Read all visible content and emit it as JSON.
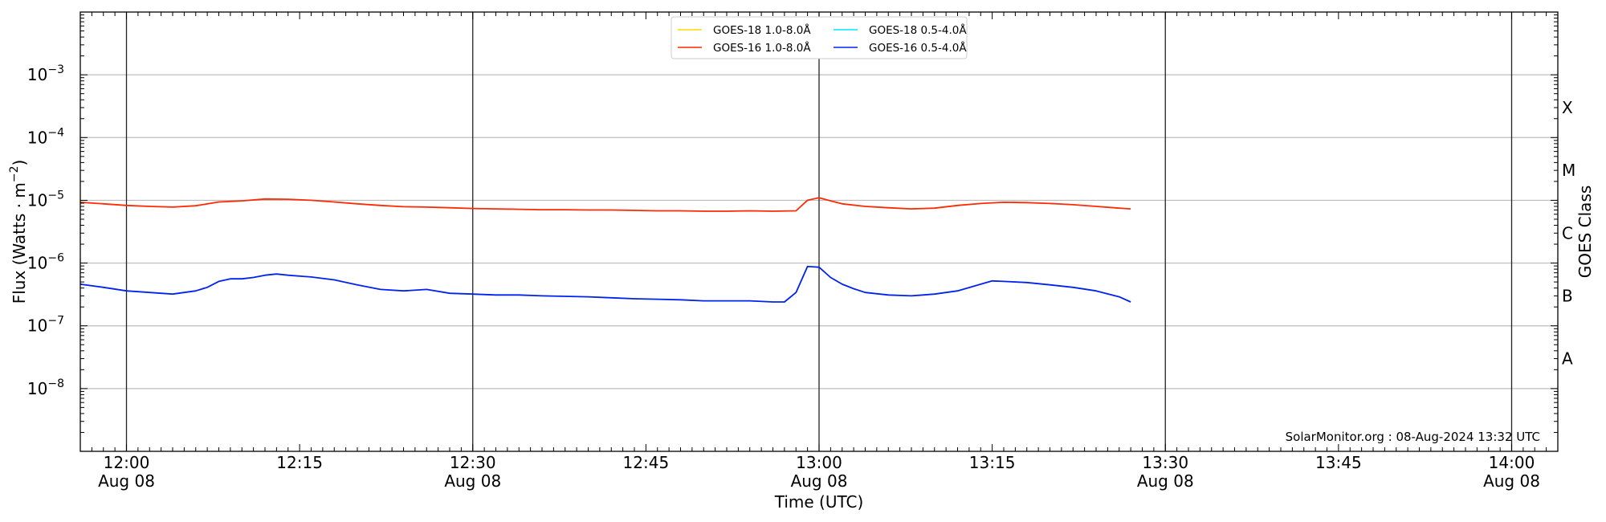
{
  "chart_data": {
    "type": "line",
    "title": "",
    "xlabel": "Time (UTC)",
    "ylabel": "Flux (Watts · m",
    "ylabel_sup": "−2",
    "ylabel_close": ")",
    "y2label": "GOES Class",
    "yscale": "log",
    "ylim": [
      1e-09,
      0.01
    ],
    "xlim": [
      "11:56",
      "14:04"
    ],
    "y_ticks": [
      {
        "exp": -8,
        "base": "10",
        "sup": "−8"
      },
      {
        "exp": -7,
        "base": "10",
        "sup": "−7"
      },
      {
        "exp": -6,
        "base": "10",
        "sup": "−6"
      },
      {
        "exp": -5,
        "base": "10",
        "sup": "−5"
      },
      {
        "exp": -4,
        "base": "10",
        "sup": "−4"
      },
      {
        "exp": -3,
        "base": "10",
        "sup": "−3"
      }
    ],
    "x_ticks": [
      {
        "t": "12:00",
        "label": "12:00",
        "date": "Aug 08",
        "vline": true
      },
      {
        "t": "12:15",
        "label": "12:15",
        "date": "",
        "vline": false
      },
      {
        "t": "12:30",
        "label": "12:30",
        "date": "Aug 08",
        "vline": true
      },
      {
        "t": "12:45",
        "label": "12:45",
        "date": "",
        "vline": false
      },
      {
        "t": "13:00",
        "label": "13:00",
        "date": "Aug 08",
        "vline": true
      },
      {
        "t": "13:15",
        "label": "13:15",
        "date": "",
        "vline": false
      },
      {
        "t": "13:30",
        "label": "13:30",
        "date": "Aug 08",
        "vline": true
      },
      {
        "t": "13:45",
        "label": "13:45",
        "date": "",
        "vline": false
      },
      {
        "t": "14:00",
        "label": "14:00",
        "date": "Aug 08",
        "vline": true
      }
    ],
    "goes_classes": [
      {
        "label": "A",
        "level": 3e-08
      },
      {
        "label": "B",
        "level": 3e-07
      },
      {
        "label": "C",
        "level": 3e-06
      },
      {
        "label": "M",
        "level": 3e-05
      },
      {
        "label": "X",
        "level": 0.0003
      }
    ],
    "grid": true,
    "legend_position": "top-center",
    "legend": [
      {
        "name": "GOES-18 1.0-8.0Å",
        "color": "#ffd700"
      },
      {
        "name": "GOES-16 1.0-8.0Å",
        "color": "#ff2a00"
      },
      {
        "name": "GOES-18 0.5-4.0Å",
        "color": "#00e5ff"
      },
      {
        "name": "GOES-16 0.5-4.0Å",
        "color": "#0022ee"
      }
    ],
    "annotation": "SolarMonitor.org : 08-Aug-2024 13:32 UTC",
    "series": [
      {
        "name": "GOES-16 1.0-8.0Å",
        "color": "#ff2a00",
        "x": [
          "11:56",
          "11:58",
          "12:00",
          "12:02",
          "12:04",
          "12:06",
          "12:08",
          "12:10",
          "12:12",
          "12:14",
          "12:16",
          "12:18",
          "12:20",
          "12:22",
          "12:24",
          "12:26",
          "12:28",
          "12:30",
          "12:32",
          "12:34",
          "12:36",
          "12:38",
          "12:40",
          "12:42",
          "12:44",
          "12:46",
          "12:48",
          "12:50",
          "12:52",
          "12:54",
          "12:56",
          "12:58",
          "12:59",
          "13:00",
          "13:01",
          "13:02",
          "13:04",
          "13:06",
          "13:08",
          "13:10",
          "13:12",
          "13:14",
          "13:16",
          "13:18",
          "13:20",
          "13:22",
          "13:24",
          "13:26",
          "13:27"
        ],
        "y": [
          9.3e-06,
          8.8e-06,
          8.3e-06,
          8e-06,
          7.8e-06,
          8.2e-06,
          9.4e-06,
          9.8e-06,
          1.05e-05,
          1.04e-05,
          1e-05,
          9.4e-06,
          8.8e-06,
          8.3e-06,
          7.9e-06,
          7.8e-06,
          7.6e-06,
          7.4e-06,
          7.3e-06,
          7.2e-06,
          7.1e-06,
          7.1e-06,
          7e-06,
          7e-06,
          6.9e-06,
          6.8e-06,
          6.8e-06,
          6.7e-06,
          6.7e-06,
          6.8e-06,
          6.7e-06,
          6.8e-06,
          1e-05,
          1.1e-05,
          9.8e-06,
          8.8e-06,
          8e-06,
          7.6e-06,
          7.3e-06,
          7.5e-06,
          8.3e-06,
          8.9e-06,
          9.3e-06,
          9.2e-06,
          8.9e-06,
          8.5e-06,
          8e-06,
          7.5e-06,
          7.3e-06
        ]
      },
      {
        "name": "GOES-16 0.5-4.0Å",
        "color": "#0022ee",
        "x": [
          "11:56",
          "11:58",
          "12:00",
          "12:02",
          "12:04",
          "12:06",
          "12:07",
          "12:08",
          "12:09",
          "12:10",
          "12:11",
          "12:12",
          "12:13",
          "12:14",
          "12:16",
          "12:18",
          "12:20",
          "12:22",
          "12:24",
          "12:26",
          "12:28",
          "12:30",
          "12:32",
          "12:34",
          "12:36",
          "12:38",
          "12:40",
          "12:42",
          "12:44",
          "12:46",
          "12:48",
          "12:50",
          "12:52",
          "12:54",
          "12:56",
          "12:57",
          "12:58",
          "12:59",
          "13:00",
          "13:01",
          "13:02",
          "13:03",
          "13:04",
          "13:06",
          "13:08",
          "13:10",
          "13:12",
          "13:14",
          "13:15",
          "13:16",
          "13:18",
          "13:20",
          "13:22",
          "13:24",
          "13:26",
          "13:27"
        ],
        "y": [
          4.6e-07,
          4.1e-07,
          3.6e-07,
          3.4e-07,
          3.2e-07,
          3.6e-07,
          4.1e-07,
          5.1e-07,
          5.6e-07,
          5.6e-07,
          5.9e-07,
          6.4e-07,
          6.7e-07,
          6.4e-07,
          6e-07,
          5.4e-07,
          4.5e-07,
          3.8e-07,
          3.6e-07,
          3.8e-07,
          3.3e-07,
          3.2e-07,
          3.1e-07,
          3.1e-07,
          3e-07,
          2.95e-07,
          2.9e-07,
          2.8e-07,
          2.7e-07,
          2.65e-07,
          2.6e-07,
          2.5e-07,
          2.5e-07,
          2.5e-07,
          2.4e-07,
          2.4e-07,
          3.4e-07,
          8.8e-07,
          8.6e-07,
          5.9e-07,
          4.6e-07,
          3.9e-07,
          3.4e-07,
          3.1e-07,
          3e-07,
          3.2e-07,
          3.6e-07,
          4.6e-07,
          5.2e-07,
          5.1e-07,
          4.9e-07,
          4.5e-07,
          4.1e-07,
          3.6e-07,
          2.9e-07,
          2.4e-07
        ]
      }
    ]
  }
}
